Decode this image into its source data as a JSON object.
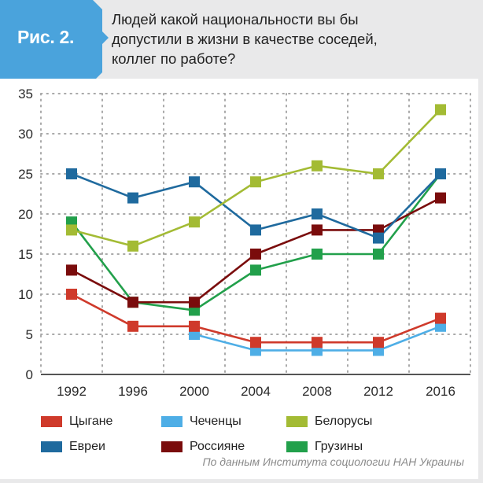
{
  "header": {
    "badge": "Рис. 2.",
    "title_lines": [
      "Людей какой национальности вы бы",
      "допустили в жизни в качестве соседей,",
      "коллег по работе?"
    ],
    "badge_color": "#4aa3dc"
  },
  "source": "По данным Института социологии НАН Украины",
  "legend": [
    {
      "label": "Цыгане",
      "color": "#cf3a2b"
    },
    {
      "label": "Чеченцы",
      "color": "#4eaee6"
    },
    {
      "label": "Белорусы",
      "color": "#a3bb34"
    },
    {
      "label": "Евреи",
      "color": "#1f6a9e"
    },
    {
      "label": "Россияне",
      "color": "#7a0c0c"
    },
    {
      "label": "Грузины",
      "color": "#22a04b"
    }
  ],
  "chart_data": {
    "type": "line",
    "title": "Людей какой национальности вы бы допустили в жизни в качестве соседей, коллег по работе?",
    "xlabel": "",
    "ylabel": "",
    "x": [
      "1992",
      "1996",
      "2000",
      "2004",
      "2008",
      "2012",
      "2016"
    ],
    "yticks": [
      0,
      5,
      10,
      15,
      20,
      25,
      30,
      35
    ],
    "ylim": [
      0,
      35
    ],
    "grid": true,
    "legend_position": "bottom",
    "series": [
      {
        "name": "Цыгане",
        "color": "#cf3a2b",
        "values": [
          10,
          6,
          6,
          4,
          4,
          4,
          7
        ]
      },
      {
        "name": "Чеченцы",
        "color": "#4eaee6",
        "values": [
          null,
          null,
          5,
          3,
          3,
          3,
          6
        ]
      },
      {
        "name": "Белорусы",
        "color": "#a3bb34",
        "values": [
          18,
          16,
          19,
          24,
          26,
          25,
          33
        ]
      },
      {
        "name": "Евреи",
        "color": "#1f6a9e",
        "values": [
          25,
          22,
          24,
          18,
          20,
          17,
          25
        ]
      },
      {
        "name": "Россияне",
        "color": "#7a0c0c",
        "values": [
          13,
          9,
          9,
          15,
          18,
          18,
          22
        ]
      },
      {
        "name": "Грузины",
        "color": "#22a04b",
        "values": [
          19,
          9,
          8,
          13,
          15,
          15,
          25
        ]
      }
    ]
  }
}
